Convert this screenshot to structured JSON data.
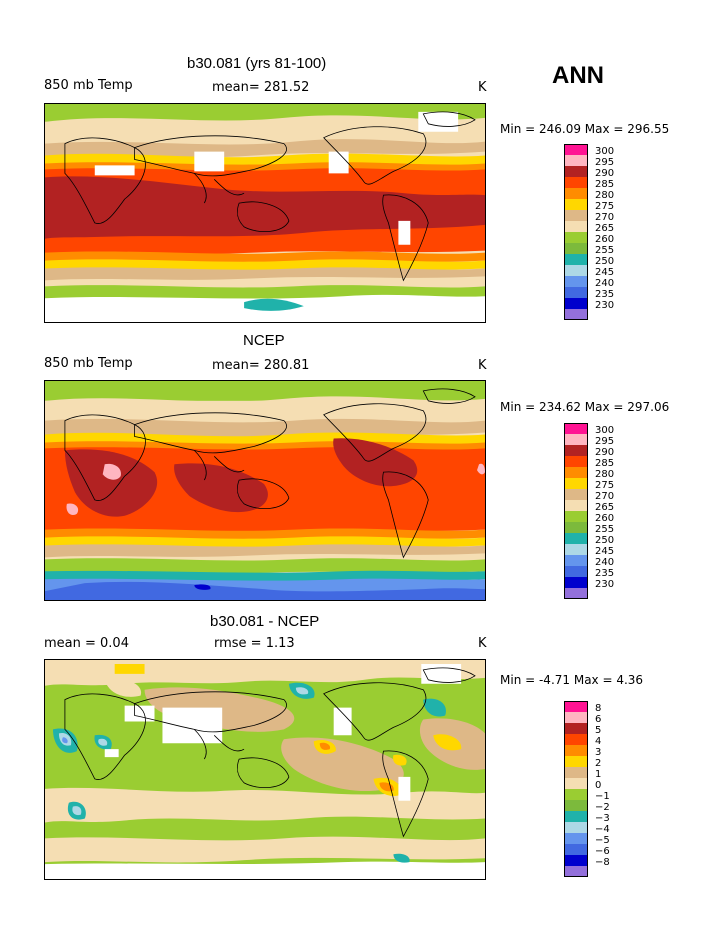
{
  "season": "ANN",
  "panels": [
    {
      "title": "b30.081 (yrs 81-100)",
      "left_label": "850 mb Temp",
      "center_label": "mean= 281.52",
      "units": "K",
      "min_max": "Min = 246.09 Max = 296.55"
    },
    {
      "title": "NCEP",
      "left_label": "850 mb Temp",
      "center_label": "mean= 280.81",
      "units": "K",
      "min_max": "Min = 234.62 Max = 297.06"
    },
    {
      "title": "b30.081 - NCEP",
      "left_label": "mean =    0.04",
      "center_label": "rmse =    1.13",
      "units": "K",
      "min_max": "Min =   -4.71 Max =    4.36"
    }
  ],
  "temp_legend": {
    "colors": [
      "#ff1493",
      "#ffb6c1",
      "#b22222",
      "#ff4500",
      "#ff8c00",
      "#ffd700",
      "#deb887",
      "#f5deb3",
      "#9acd32",
      "#7cba3c",
      "#20b2aa",
      "#add8e6",
      "#6495ed",
      "#4169e1",
      "#0000cd",
      "#9370db"
    ],
    "labels": [
      "300",
      "295",
      "290",
      "285",
      "280",
      "275",
      "270",
      "265",
      "260",
      "255",
      "250",
      "245",
      "240",
      "235",
      "230"
    ]
  },
  "diff_legend": {
    "colors": [
      "#ff1493",
      "#ffb6c1",
      "#b22222",
      "#ff4500",
      "#ff8c00",
      "#ffd700",
      "#deb887",
      "#f5deb3",
      "#9acd32",
      "#7cba3c",
      "#20b2aa",
      "#add8e6",
      "#6495ed",
      "#4169e1",
      "#0000cd",
      "#9370db"
    ],
    "labels": [
      "8",
      "6",
      "5",
      "4",
      "3",
      "2",
      "1",
      "0",
      "−1",
      "−2",
      "−3",
      "−4",
      "−5",
      "−6",
      "−8"
    ]
  }
}
